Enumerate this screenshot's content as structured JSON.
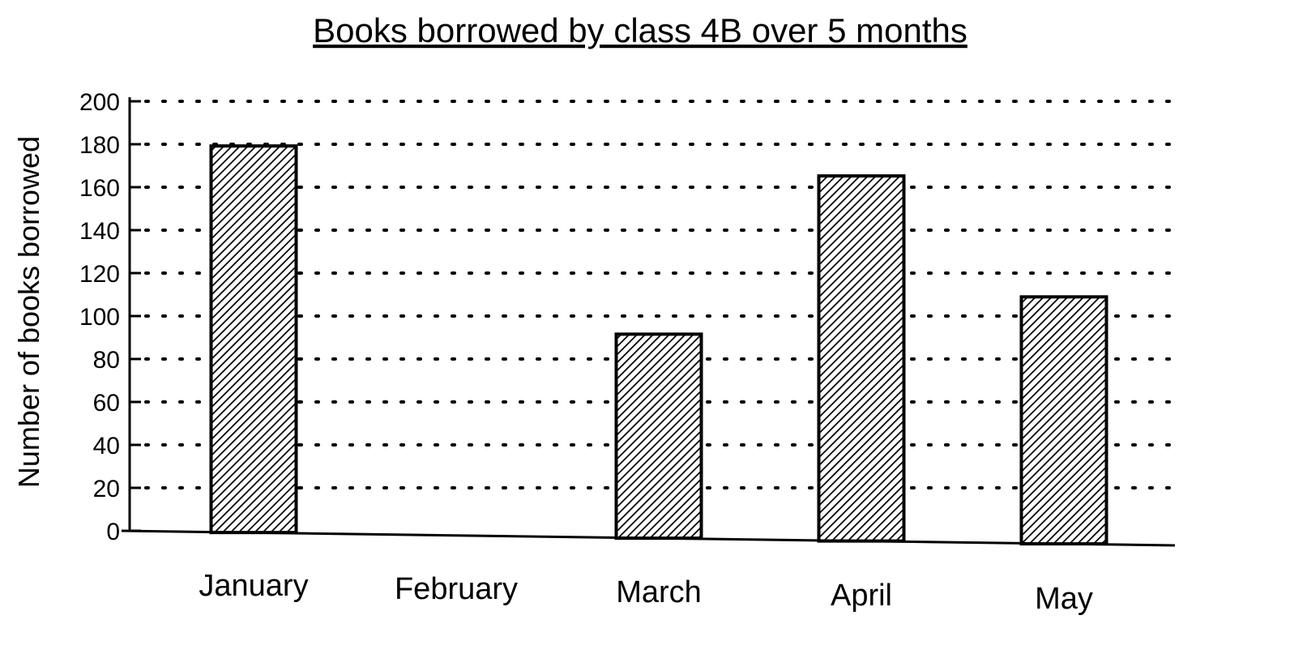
{
  "chart_data": {
    "type": "bar",
    "title": "Books borrowed by class 4B over 5 months",
    "xlabel": "",
    "ylabel": "Number of books borrowed",
    "categories": [
      "January",
      "February",
      "March",
      "April",
      "May"
    ],
    "values": [
      180,
      0,
      95,
      170,
      115
    ],
    "ylim": [
      0,
      200
    ],
    "yticks": [
      "0",
      "20",
      "40",
      "60",
      "80",
      "100",
      "120",
      "140",
      "160",
      "180",
      "200"
    ],
    "grid": true,
    "bar_fill": "diagonal hatch",
    "colors": {
      "ink": "#000000",
      "background": "#ffffff"
    }
  }
}
